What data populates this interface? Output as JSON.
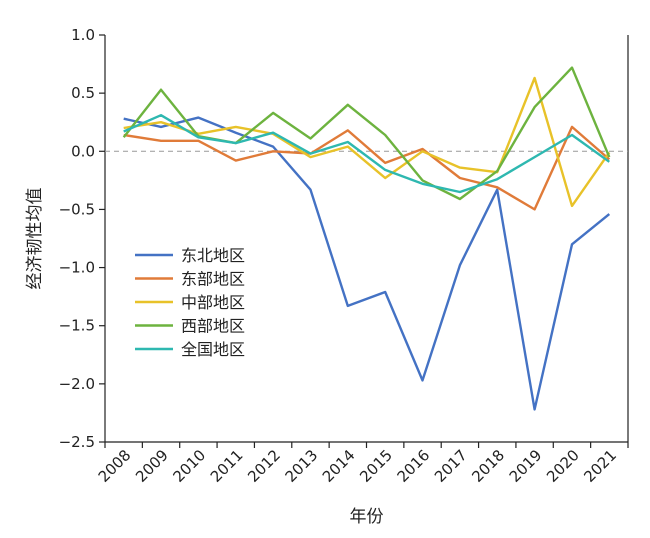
{
  "chart_data": {
    "type": "line",
    "title": "",
    "xlabel": "年份",
    "ylabel": "经济韧性均值",
    "x": [
      "2008",
      "2009",
      "2010",
      "2011",
      "2012",
      "2013",
      "2014",
      "2015",
      "2016",
      "2017",
      "2018",
      "2019",
      "2020",
      "2021"
    ],
    "ylim": [
      -2.5,
      1.0
    ],
    "yticks": [
      "1.0",
      "0.5",
      "0.0",
      "−0.5",
      "−1.0",
      "−1.5",
      "−2.0",
      "−2.5"
    ],
    "ytick_values": [
      1.0,
      0.5,
      0.0,
      -0.5,
      -1.0,
      -1.5,
      -2.0,
      -2.5
    ],
    "reference_line": 0.0,
    "grid": false,
    "legend_position": "left-middle",
    "series": [
      {
        "name": "东北地区",
        "color": "#4472c4",
        "values": [
          0.28,
          0.21,
          0.29,
          0.16,
          0.04,
          -0.33,
          -1.33,
          -1.21,
          -1.97,
          -0.98,
          -0.33,
          -2.22,
          -0.8,
          -0.54
        ]
      },
      {
        "name": "东部地区",
        "color": "#e07b39",
        "values": [
          0.14,
          0.09,
          0.09,
          -0.08,
          0.0,
          -0.02,
          0.18,
          -0.1,
          0.02,
          -0.23,
          -0.31,
          -0.5,
          0.21,
          -0.07
        ]
      },
      {
        "name": "中部地区",
        "color": "#e8c229",
        "values": [
          0.2,
          0.25,
          0.15,
          0.21,
          0.15,
          -0.05,
          0.04,
          -0.23,
          0.0,
          -0.14,
          -0.18,
          0.63,
          -0.47,
          -0.01
        ]
      },
      {
        "name": "西部地区",
        "color": "#6db33f",
        "values": [
          0.12,
          0.53,
          0.13,
          0.07,
          0.33,
          0.11,
          0.4,
          0.14,
          -0.25,
          -0.41,
          -0.17,
          0.38,
          0.72,
          -0.05
        ]
      },
      {
        "name": "全国地区",
        "color": "#2eb8b0",
        "values": [
          0.17,
          0.31,
          0.12,
          0.07,
          0.16,
          -0.02,
          0.08,
          -0.16,
          -0.28,
          -0.35,
          -0.24,
          -0.05,
          0.14,
          -0.09
        ]
      }
    ]
  }
}
